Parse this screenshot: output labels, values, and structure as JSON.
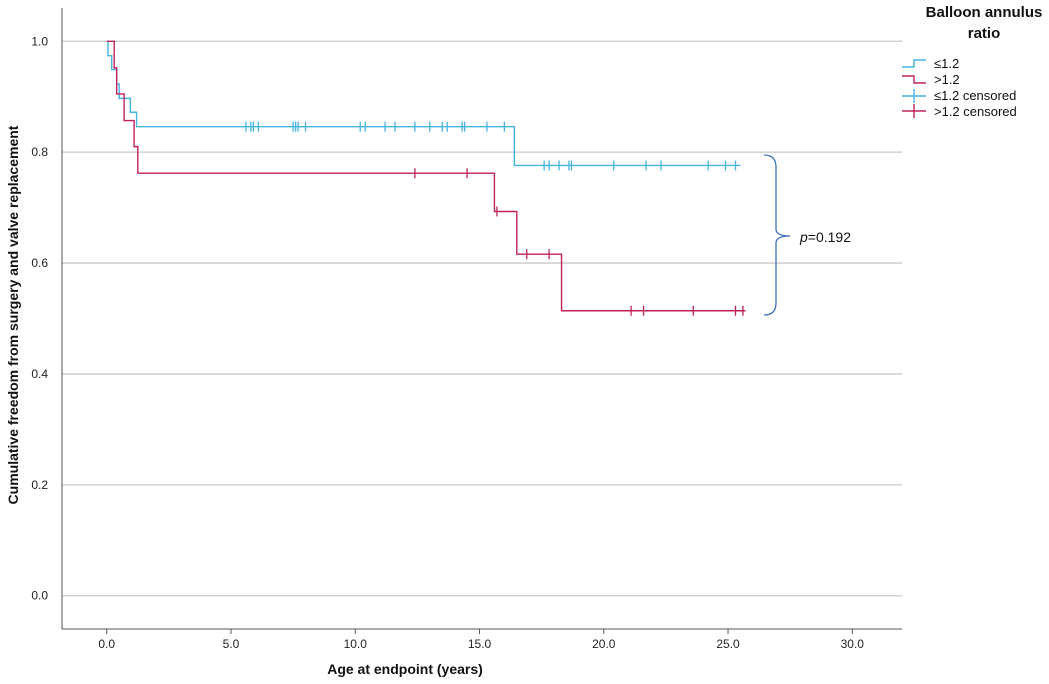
{
  "chart_data": {
    "type": "line",
    "xlabel": "Age at endpoint (years)",
    "ylabel": "Cumulative freedom from surgery and valve replacement",
    "xlim": [
      -1.8,
      32.0
    ],
    "ylim": [
      -0.06,
      1.06
    ],
    "x_ticks": [
      "0.0",
      "5.0",
      "10.0",
      "15.0",
      "20.0",
      "25.0",
      "30.0"
    ],
    "y_ticks": [
      "0.0",
      "0.2",
      "0.4",
      "0.6",
      "0.8",
      "1.0"
    ],
    "grid": "horizontal",
    "legend": {
      "title_lines": [
        "Balloon annulus",
        "ratio"
      ],
      "placement": "top-right",
      "entries": [
        "≤1.2",
        ">1.2",
        "≤1.2 censored",
        ">1.2 censored"
      ]
    },
    "annotation": {
      "p_label": "p",
      "p_value": "=0.192"
    },
    "series": [
      {
        "name": "≤1.2",
        "color": "#45b4e0",
        "steps": [
          [
            0,
            1.0
          ],
          [
            0.05,
            0.974
          ],
          [
            0.2,
            0.949
          ],
          [
            0.4,
            0.923
          ],
          [
            0.5,
            0.897
          ],
          [
            0.95,
            0.872
          ],
          [
            1.2,
            0.846
          ],
          [
            16.4,
            0.776
          ],
          [
            25.5,
            0.776
          ]
        ],
        "censored": [
          [
            5.6,
            0.846
          ],
          [
            5.8,
            0.846
          ],
          [
            5.9,
            0.846
          ],
          [
            6.1,
            0.846
          ],
          [
            7.5,
            0.846
          ],
          [
            7.6,
            0.846
          ],
          [
            7.7,
            0.846
          ],
          [
            8.0,
            0.846
          ],
          [
            10.2,
            0.846
          ],
          [
            10.4,
            0.846
          ],
          [
            11.2,
            0.846
          ],
          [
            11.6,
            0.846
          ],
          [
            12.4,
            0.846
          ],
          [
            13.0,
            0.846
          ],
          [
            13.5,
            0.846
          ],
          [
            13.7,
            0.846
          ],
          [
            14.3,
            0.846
          ],
          [
            14.4,
            0.846
          ],
          [
            15.3,
            0.846
          ],
          [
            16.0,
            0.846
          ],
          [
            17.6,
            0.776
          ],
          [
            17.8,
            0.776
          ],
          [
            18.2,
            0.776
          ],
          [
            18.6,
            0.776
          ],
          [
            18.7,
            0.776
          ],
          [
            20.4,
            0.776
          ],
          [
            21.7,
            0.776
          ],
          [
            22.3,
            0.776
          ],
          [
            24.2,
            0.776
          ],
          [
            24.9,
            0.776
          ],
          [
            25.3,
            0.776
          ]
        ]
      },
      {
        "name": ">1.2",
        "color": "#c0215a",
        "steps": [
          [
            0,
            1.0
          ],
          [
            0.3,
            0.952
          ],
          [
            0.4,
            0.905
          ],
          [
            0.7,
            0.857
          ],
          [
            1.1,
            0.81
          ],
          [
            1.25,
            0.762
          ],
          [
            15.6,
            0.693
          ],
          [
            16.5,
            0.616
          ],
          [
            18.3,
            0.514
          ],
          [
            25.7,
            0.514
          ]
        ],
        "censored": [
          [
            12.4,
            0.762
          ],
          [
            14.5,
            0.762
          ],
          [
            15.7,
            0.693
          ],
          [
            16.9,
            0.616
          ],
          [
            17.8,
            0.616
          ],
          [
            21.1,
            0.514
          ],
          [
            21.6,
            0.514
          ],
          [
            23.6,
            0.514
          ],
          [
            25.3,
            0.514
          ],
          [
            25.6,
            0.514
          ]
        ]
      }
    ]
  }
}
